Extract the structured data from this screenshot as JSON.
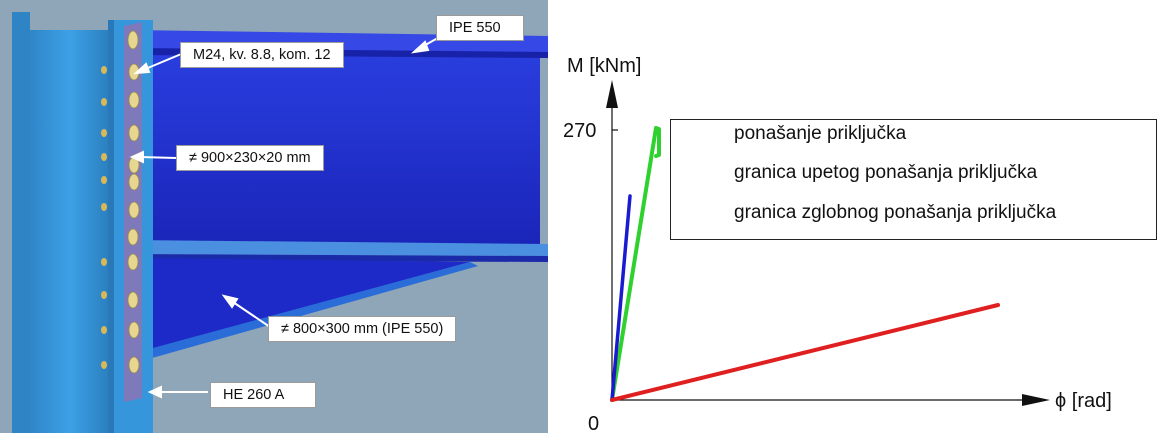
{
  "model": {
    "callouts": {
      "beam": "IPE 550",
      "bolts": "M24, kv. 8.8, kom. 12",
      "end_plate": "≠ 900×230×20 mm",
      "haunch": "≠ 800×300 mm (IPE 550)",
      "column": "HE 260 A"
    },
    "colors": {
      "background": "#8fa7b8",
      "column": "#2e8fd6",
      "beam": "#1f2fd0",
      "plate": "#7d78b8",
      "bolt": "#e3d48d"
    }
  },
  "diagram": {
    "y_axis_label": "M [kNm]",
    "x_axis_label": "ϕ [rad]",
    "y_tick_label": "270",
    "origin_label": "0",
    "legend": [
      {
        "label": "ponašanje priključka",
        "color": "#2fd12f"
      },
      {
        "label": "granica upetog ponašanja priključka",
        "color": "#1a1ad0"
      },
      {
        "label": "granica zglobnog ponašanja priključka",
        "color": "#e02020"
      }
    ]
  }
}
